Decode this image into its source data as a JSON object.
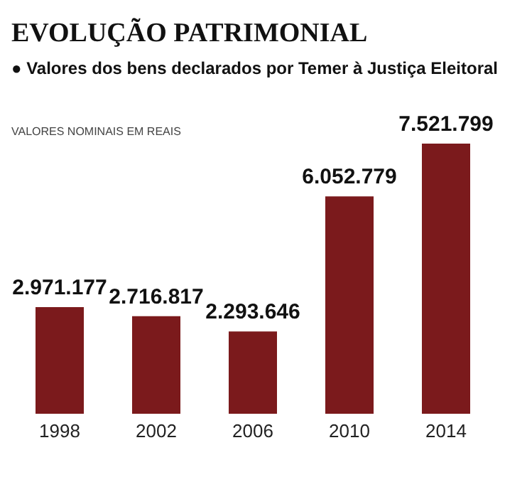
{
  "chart_data": {
    "type": "bar",
    "title": "EVOLUÇÃO PATRIMONIAL",
    "subtitle": "● Valores dos bens declarados por Temer à Justiça Eleitoral",
    "annotations": [
      "VALORES NOMINAIS EM REAIS"
    ],
    "categories": [
      "1998",
      "2002",
      "2006",
      "2010",
      "2014"
    ],
    "values": [
      2971177,
      2716817,
      2293646,
      6052779,
      7521799
    ],
    "value_labels": [
      "2.971.177",
      "2.716.817",
      "2.293.646",
      "6.052.779",
      "7.521.799"
    ],
    "color": "#7b1a1c"
  }
}
